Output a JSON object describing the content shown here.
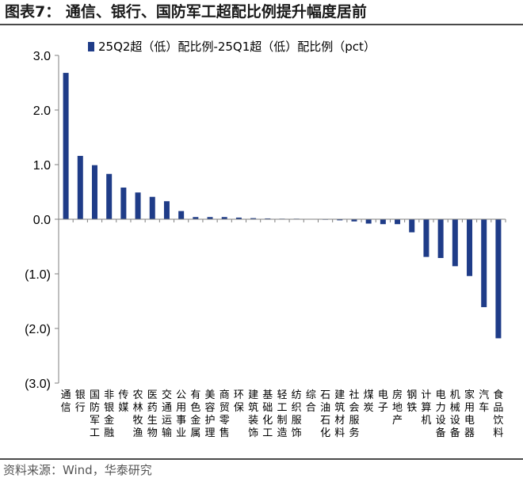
{
  "header": {
    "title": "图表7：  通信、银行、国防军工超配比例提升幅度居前"
  },
  "footer": {
    "source": "资料来源：Wind，华泰研究"
  },
  "colors": {
    "bar": "#1f3c88",
    "axis": "#7f7f7f",
    "rule": "#4a4a4a"
  },
  "chart_data": {
    "type": "bar",
    "title": "",
    "xlabel": "",
    "ylabel": "",
    "ylim": [
      -3.0,
      3.0
    ],
    "ytick_values": [
      3.0,
      2.0,
      1.0,
      0.0,
      -1.0,
      -2.0,
      -3.0
    ],
    "ytick_labels": [
      "3.0",
      "2.0",
      "1.0",
      "0.0",
      "(1.0)",
      "(2.0)",
      "(3.0)"
    ],
    "grid": false,
    "legend_position": "top",
    "categories": [
      "通信",
      "银行",
      "国防军工",
      "非银金融",
      "传媒",
      "农林牧渔",
      "医药生物",
      "交通运输",
      "公用事业",
      "有色金属",
      "美容护理",
      "商贸零售",
      "环保",
      "建筑装饰",
      "基础化工",
      "轻工制造",
      "纺织服饰",
      "综合",
      "石油石化",
      "建筑材料",
      "社会服务",
      "煤炭",
      "电子",
      "房地产",
      "钢铁",
      "计算机",
      "电力设备",
      "机械设备",
      "家用电器",
      "汽车",
      "食品饮料"
    ],
    "series": [
      {
        "name": "25Q2超（低）配比例-25Q1超（低）配比例（pct）",
        "values": [
          2.68,
          1.16,
          0.99,
          0.83,
          0.58,
          0.49,
          0.41,
          0.33,
          0.15,
          0.04,
          0.04,
          0.04,
          0.03,
          0.02,
          0.015,
          0.01,
          0.01,
          0.005,
          -0.01,
          -0.02,
          -0.04,
          -0.08,
          -0.09,
          -0.09,
          -0.24,
          -0.69,
          -0.71,
          -0.86,
          -1.04,
          -1.61,
          -2.18
        ]
      }
    ]
  }
}
